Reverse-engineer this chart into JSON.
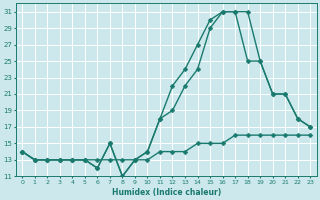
{
  "xlabel": "Humidex (Indice chaleur)",
  "bg_color": "#cce8ec",
  "grid_color": "#ffffff",
  "line_color": "#1a7a6e",
  "line1_y": [
    14,
    13,
    13,
    13,
    13,
    13,
    12,
    15,
    11,
    13,
    14,
    18,
    22,
    24,
    27,
    30,
    31,
    31,
    25,
    25,
    21,
    21,
    18,
    17
  ],
  "line2_y": [
    14,
    13,
    13,
    13,
    13,
    13,
    12,
    15,
    11,
    13,
    14,
    18,
    19,
    22,
    24,
    29,
    31,
    31,
    31,
    25,
    21,
    21,
    18,
    17
  ],
  "line3_y": [
    14,
    13,
    13,
    13,
    13,
    13,
    13,
    13,
    13,
    13,
    13,
    14,
    14,
    14,
    15,
    15,
    15,
    16,
    16,
    16,
    16,
    16,
    16,
    16
  ],
  "xvals": [
    0,
    1,
    2,
    3,
    4,
    5,
    6,
    7,
    8,
    9,
    10,
    11,
    12,
    13,
    14,
    15,
    16,
    17,
    18,
    19,
    20,
    21,
    22,
    23
  ],
  "ylim": [
    11,
    32
  ],
  "xlim": [
    -0.5,
    23.5
  ],
  "yticks": [
    11,
    13,
    15,
    17,
    19,
    21,
    23,
    25,
    27,
    29,
    31
  ],
  "xticks": [
    0,
    1,
    2,
    3,
    4,
    5,
    6,
    7,
    8,
    9,
    10,
    11,
    12,
    13,
    14,
    15,
    16,
    17,
    18,
    19,
    20,
    21,
    22,
    23
  ],
  "xtick_labels": [
    "0",
    "1",
    "2",
    "3",
    "4",
    "5",
    "6",
    "7",
    "8",
    "9",
    "10",
    "11",
    "12",
    "13",
    "14",
    "15",
    "16",
    "17",
    "18",
    "19",
    "20",
    "21",
    "22",
    "23"
  ],
  "markersize": 2.5,
  "linewidth": 1.0
}
